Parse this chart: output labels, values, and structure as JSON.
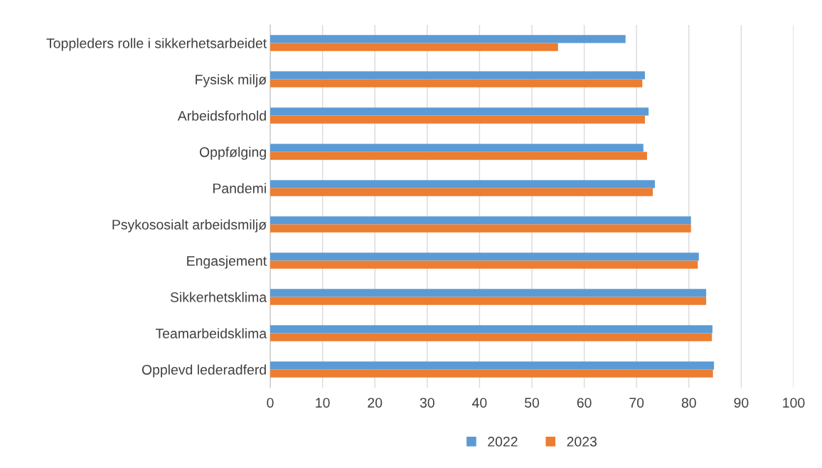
{
  "chart_data": {
    "type": "bar",
    "orientation": "horizontal",
    "categories": [
      "Toppleders rolle i sikkerhetsarbeidet",
      "Fysisk miljø",
      "Arbeidsforhold",
      "Oppfølging",
      "Pandemi",
      "Psykososialt arbeidsmiljø",
      "Engasjement",
      "Sikkerhetsklima",
      "Teamarbeidsklima",
      "Opplevd lederadferd"
    ],
    "series": [
      {
        "name": "2022",
        "color": "#5b9bd5",
        "values": [
          67.9,
          71.6,
          72.3,
          71.3,
          73.5,
          80.4,
          81.9,
          83.3,
          84.5,
          84.8
        ]
      },
      {
        "name": "2023",
        "color": "#ed7d31",
        "values": [
          55.0,
          71.1,
          71.6,
          72.0,
          73.1,
          80.4,
          81.7,
          83.3,
          84.4,
          84.6
        ]
      }
    ],
    "xlim": [
      0,
      100
    ],
    "xticks": [
      0,
      10,
      20,
      30,
      40,
      50,
      60,
      70,
      80,
      90,
      100
    ],
    "grid": "x",
    "legend": "bottom"
  }
}
